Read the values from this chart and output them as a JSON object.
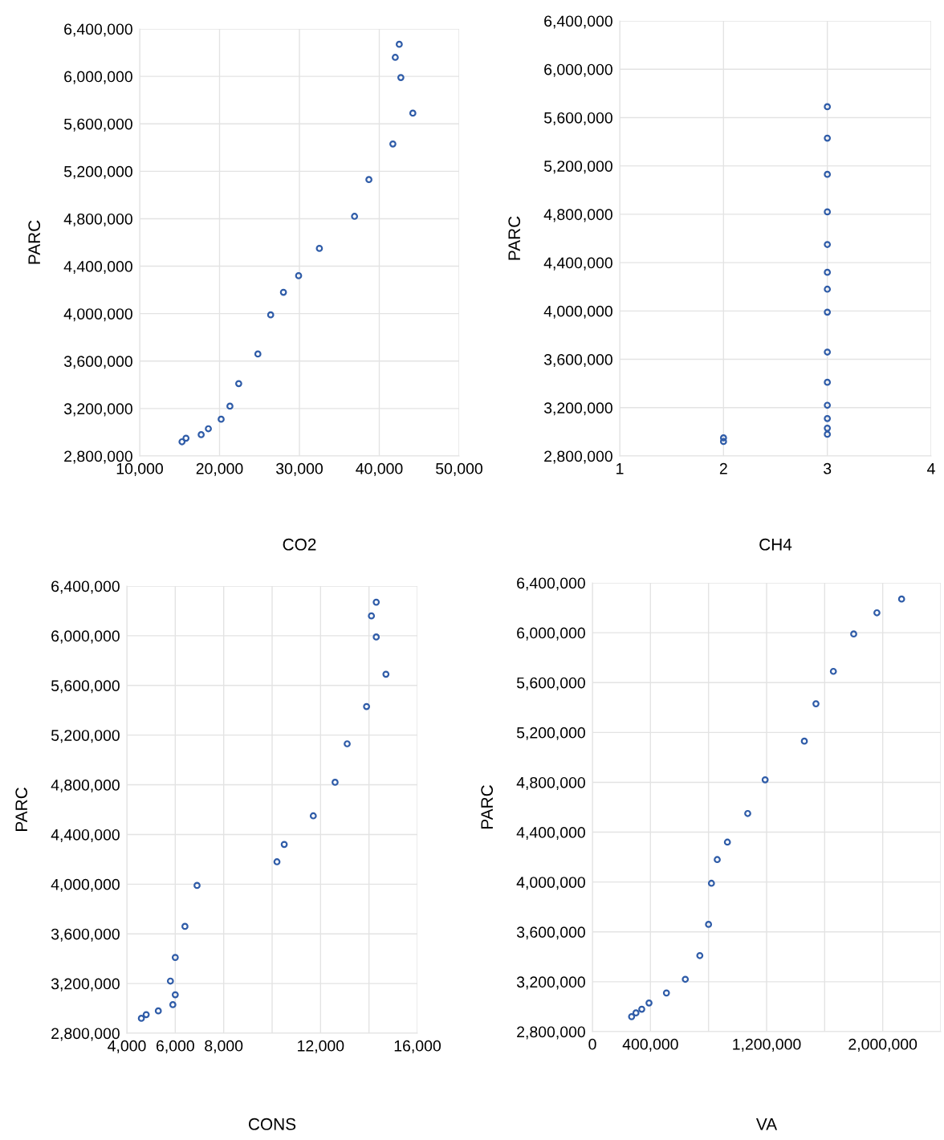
{
  "chart_data": [
    {
      "type": "scatter",
      "xlabel": "CO2",
      "ylabel": "PARC",
      "marker": "circle",
      "grid": true,
      "xlim": [
        10000,
        50000
      ],
      "xticks": [
        {
          "value": 10000,
          "label": "10,000"
        },
        {
          "value": 20000,
          "label": "20,000"
        },
        {
          "value": 30000,
          "label": "30,000"
        },
        {
          "value": 40000,
          "label": "40,000"
        },
        {
          "value": 50000,
          "label": "50,000"
        }
      ],
      "ylim": [
        2800000,
        6400000
      ],
      "yticks": [
        {
          "value": 2800000,
          "label": "2,800,000"
        },
        {
          "value": 3200000,
          "label": "3,200,000"
        },
        {
          "value": 3600000,
          "label": "3,600,000"
        },
        {
          "value": 4000000,
          "label": "4,000,000"
        },
        {
          "value": 4400000,
          "label": "4,400,000"
        },
        {
          "value": 4800000,
          "label": "4,800,000"
        },
        {
          "value": 5200000,
          "label": "5,200,000"
        },
        {
          "value": 5600000,
          "label": "5,600,000"
        },
        {
          "value": 6000000,
          "label": "6,000,000"
        },
        {
          "value": 6400000,
          "label": "6,400,000"
        }
      ],
      "series": [
        {
          "color": "#2f5ca8",
          "x": [
            42500,
            42000,
            42700,
            44200,
            41700,
            38700,
            36900,
            32500,
            29900,
            28000,
            26400,
            24800,
            22400,
            21300,
            20200,
            18600,
            17700,
            15800,
            15300
          ],
          "values": [
            6270000,
            6160000,
            5990000,
            5690000,
            5430000,
            5130000,
            4820000,
            4550000,
            4320000,
            4180000,
            3990000,
            3660000,
            3410000,
            3220000,
            3110000,
            3030000,
            2980000,
            2950000,
            2920000
          ]
        }
      ]
    },
    {
      "type": "scatter",
      "xlabel": "CH4",
      "ylabel": "PARC",
      "marker": "circle",
      "grid": true,
      "xlim": [
        1,
        4
      ],
      "xticks": [
        1,
        2,
        3,
        4
      ],
      "ylim": [
        2800000,
        6400000
      ],
      "yticks": [
        {
          "value": 2800000,
          "label": "2,800,000"
        },
        {
          "value": 3200000,
          "label": "3,200,000"
        },
        {
          "value": 3600000,
          "label": "3,600,000"
        },
        {
          "value": 4000000,
          "label": "4,000,000"
        },
        {
          "value": 4400000,
          "label": "4,400,000"
        },
        {
          "value": 4800000,
          "label": "4,800,000"
        },
        {
          "value": 5200000,
          "label": "5,200,000"
        },
        {
          "value": 5600000,
          "label": "5,600,000"
        },
        {
          "value": 6000000,
          "label": "6,000,000"
        },
        {
          "value": 6400000,
          "label": "6,400,000"
        }
      ],
      "series": [
        {
          "color": "#2f5ca8",
          "x": [
            3,
            3,
            3,
            3,
            3,
            3,
            3,
            3,
            3,
            3,
            3,
            3,
            3,
            3,
            2,
            2
          ],
          "values": [
            5690000,
            5430000,
            5130000,
            4820000,
            4550000,
            4320000,
            4180000,
            3990000,
            3660000,
            3410000,
            3220000,
            3110000,
            3030000,
            2980000,
            2950000,
            2920000
          ]
        }
      ]
    },
    {
      "type": "scatter",
      "xlabel": "CONS",
      "ylabel": "PARC",
      "marker": "circle",
      "grid": true,
      "xlim": [
        4000,
        16000
      ],
      "xticks": [
        {
          "value": 4000,
          "label": "4,000"
        },
        {
          "value": 6000,
          "label": "6,000"
        },
        {
          "value": 8000,
          "label": "8,000"
        },
        {
          "value": 10000,
          "label": null
        },
        {
          "value": 12000,
          "label": "12,000"
        },
        {
          "value": 14000,
          "label": null
        },
        {
          "value": 16000,
          "label": "16,000"
        }
      ],
      "ylim": [
        2800000,
        6400000
      ],
      "yticks": [
        {
          "value": 2800000,
          "label": "2,800,000"
        },
        {
          "value": 3200000,
          "label": "3,200,000"
        },
        {
          "value": 3600000,
          "label": "3,600,000"
        },
        {
          "value": 4000000,
          "label": "4,000,000"
        },
        {
          "value": 4400000,
          "label": "4,400,000"
        },
        {
          "value": 4800000,
          "label": "4,800,000"
        },
        {
          "value": 5200000,
          "label": "5,200,000"
        },
        {
          "value": 5600000,
          "label": "5,600,000"
        },
        {
          "value": 6000000,
          "label": "6,000,000"
        },
        {
          "value": 6400000,
          "label": "6,400,000"
        }
      ],
      "series": [
        {
          "color": "#2f5ca8",
          "x": [
            14300,
            14100,
            14300,
            14700,
            13900,
            13100,
            12600,
            11700,
            10500,
            10200,
            6900,
            6400,
            6000,
            5800,
            6000,
            5900,
            5300,
            4800,
            4600
          ],
          "values": [
            6270000,
            6160000,
            5990000,
            5690000,
            5430000,
            5130000,
            4820000,
            4550000,
            4320000,
            4180000,
            3990000,
            3660000,
            3410000,
            3220000,
            3110000,
            3030000,
            2980000,
            2950000,
            2920000
          ]
        }
      ]
    },
    {
      "type": "scatter",
      "xlabel": "VA",
      "ylabel": "PARC",
      "marker": "circle",
      "grid": true,
      "xlim": [
        0,
        2400000
      ],
      "xticks": [
        0,
        {
          "value": 400000,
          "label": "400,000"
        },
        {
          "value": 800000,
          "label": null
        },
        {
          "value": 1200000,
          "label": "1,200,000"
        },
        {
          "value": 1600000,
          "label": null
        },
        {
          "value": 2000000,
          "label": "2,000,000"
        },
        {
          "value": 2400000,
          "label": null
        }
      ],
      "ylim": [
        2800000,
        6400000
      ],
      "yticks": [
        {
          "value": 2800000,
          "label": "2,800,000"
        },
        {
          "value": 3200000,
          "label": "3,200,000"
        },
        {
          "value": 3600000,
          "label": "3,600,000"
        },
        {
          "value": 4000000,
          "label": "4,000,000"
        },
        {
          "value": 4400000,
          "label": "4,400,000"
        },
        {
          "value": 4800000,
          "label": "4,800,000"
        },
        {
          "value": 5200000,
          "label": "5,200,000"
        },
        {
          "value": 5600000,
          "label": "5,600,000"
        },
        {
          "value": 6000000,
          "label": "6,000,000"
        },
        {
          "value": 6400000,
          "label": "6,400,000"
        }
      ],
      "series": [
        {
          "color": "#2f5ca8",
          "x": [
            2130000,
            1960000,
            1800000,
            1660000,
            1540000,
            1460000,
            1190000,
            1070000,
            930000,
            860000,
            820000,
            800000,
            740000,
            640000,
            510000,
            390000,
            340000,
            300000,
            270000
          ],
          "values": [
            6270000,
            6160000,
            5990000,
            5690000,
            5430000,
            5130000,
            4820000,
            4550000,
            4320000,
            4180000,
            3990000,
            3660000,
            3410000,
            3220000,
            3110000,
            3030000,
            2980000,
            2950000,
            2920000
          ]
        }
      ]
    }
  ]
}
